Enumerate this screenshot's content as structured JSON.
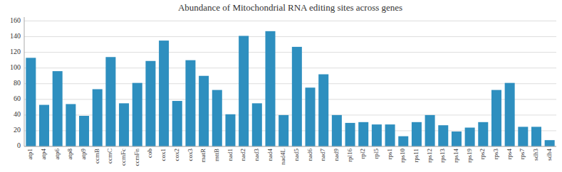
{
  "chart_data": {
    "type": "bar",
    "title": "Abundance of Mitochondrial RNA editing sites across genes",
    "categories": [
      "atp1",
      "atp4",
      "atp6",
      "atp8",
      "atp9",
      "ccmB",
      "ccmC",
      "ccmFc",
      "ccmFn",
      "cob",
      "cox1",
      "cox2",
      "cox3",
      "matR",
      "mttB",
      "nad1",
      "nad2",
      "nad3",
      "nad4",
      "nad4L",
      "nad5",
      "nad6",
      "nad7",
      "nad9",
      "rpl16",
      "rpl2",
      "rpl5",
      "rps1",
      "rps10",
      "rps11",
      "rps12",
      "rps13",
      "rps14",
      "rps19",
      "rps2",
      "rps3",
      "rps4",
      "rps7",
      "sdh3",
      "sdh4"
    ],
    "values": [
      113,
      53,
      96,
      54,
      39,
      73,
      114,
      55,
      81,
      109,
      135,
      58,
      110,
      90,
      72,
      41,
      141,
      55,
      147,
      40,
      127,
      75,
      92,
      40,
      30,
      31,
      28,
      28,
      13,
      31,
      40,
      27,
      19,
      24,
      31,
      72,
      81,
      25,
      25,
      8
    ],
    "color": "#2e8fbf",
    "ylim": [
      0,
      165
    ],
    "yticks": [
      0,
      20,
      40,
      60,
      80,
      100,
      120,
      140,
      160
    ],
    "grid": true
  }
}
